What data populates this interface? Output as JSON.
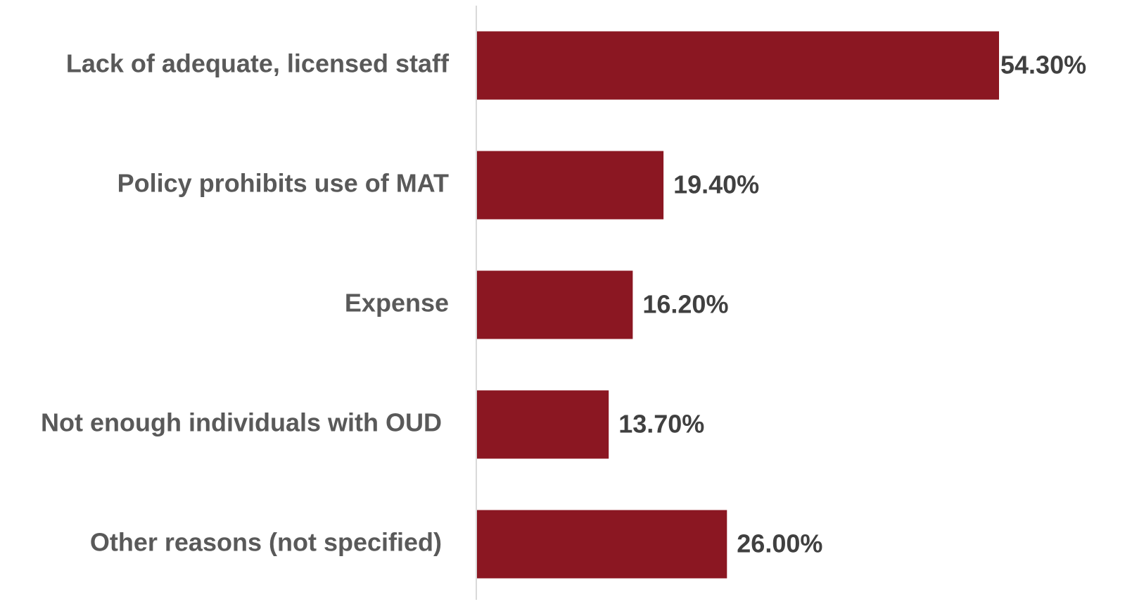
{
  "chart_data": {
    "type": "bar",
    "orientation": "horizontal",
    "categories": [
      "Lack of adequate, licensed staff",
      "Policy prohibits use of MAT",
      "Expense",
      "Not enough individuals with OUD",
      "Other reasons (not specified)"
    ],
    "values": [
      54.3,
      19.4,
      16.2,
      13.7,
      26.0
    ],
    "value_labels": [
      "54.30%",
      "19.40%",
      "16.20%",
      "13.70%",
      "26.00%"
    ],
    "color": "#8b1722"
  }
}
